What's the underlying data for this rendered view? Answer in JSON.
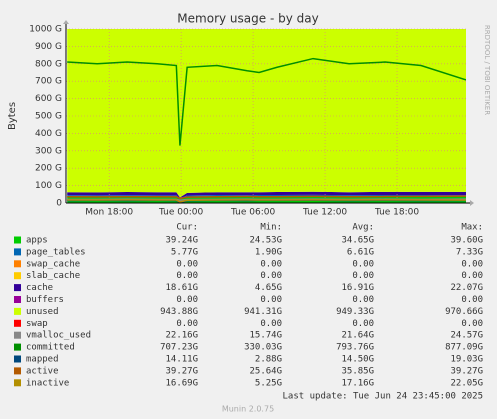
{
  "chart_data": {
    "type": "area",
    "title": "Memory usage - by day",
    "ylabel": "Bytes",
    "side_text": "RRDTOOL / TOBI OETIKER",
    "footer": "Last update: Tue Jun 24 23:45:00 2025",
    "version": "Munin 2.0.75",
    "legend_headers": [
      "Cur:",
      "Min:",
      "Avg:",
      "Max:"
    ],
    "x": [
      14.5,
      17,
      19.5,
      22,
      23.6,
      23.9,
      24.5,
      27,
      29.5,
      30.5,
      32,
      35,
      38,
      41,
      44,
      47.75
    ],
    "xlim": [
      14.4,
      47.75
    ],
    "xticks": [
      {
        "value": 18,
        "label": "Mon 18:00"
      },
      {
        "value": 24,
        "label": "Tue 00:00"
      },
      {
        "value": 30,
        "label": "Tue 06:00"
      },
      {
        "value": 36,
        "label": "Tue 12:00"
      },
      {
        "value": 42,
        "label": "Tue 18:00"
      }
    ],
    "ylim": [
      0,
      1000
    ],
    "yticks": [
      0,
      {
        "value": 100,
        "label": "100 G"
      },
      {
        "value": 200,
        "label": "200 G"
      },
      {
        "value": 300,
        "label": "300 G"
      },
      {
        "value": 400,
        "label": "400 G"
      },
      {
        "value": 500,
        "label": "500 G"
      },
      {
        "value": 600,
        "label": "600 G"
      },
      {
        "value": 700,
        "label": "700 G"
      },
      {
        "value": 800,
        "label": "800 G"
      },
      {
        "value": 900,
        "label": "900 G"
      },
      {
        "value": 1000,
        "label": "1000 G"
      }
    ],
    "grid": true,
    "series": [
      {
        "name": "apps",
        "color": "#00cc00",
        "stack": true,
        "values": [
          39,
          38,
          39,
          38,
          38,
          25,
          37,
          39,
          38,
          39,
          39,
          40,
          39,
          39,
          39,
          39.24
        ],
        "cur": "39.24G",
        "min": "24.53G",
        "avg": "34.65G",
        "max": "39.60G"
      },
      {
        "name": "page_tables",
        "color": "#0066b3",
        "stack": true,
        "values": [
          6,
          6,
          6,
          6,
          6,
          2,
          6,
          7,
          7,
          7,
          7,
          7,
          6,
          7,
          7,
          5.77
        ],
        "cur": "5.77G",
        "min": "1.90G",
        "avg": "6.61G",
        "max": "7.33G"
      },
      {
        "name": "swap_cache",
        "color": "#ff8000",
        "stack": true,
        "values": [
          0,
          0,
          0,
          0,
          0,
          0,
          0,
          0,
          0,
          0,
          0,
          0,
          0,
          0,
          0,
          0
        ],
        "cur": "0.00",
        "min": "0.00",
        "avg": "0.00",
        "max": "0.00"
      },
      {
        "name": "slab_cache",
        "color": "#ffcc00",
        "stack": true,
        "values": [
          0,
          0,
          0,
          0,
          0,
          0,
          0,
          0,
          0,
          0,
          0,
          0,
          0,
          0,
          0,
          0
        ],
        "cur": "0.00",
        "min": "0.00",
        "avg": "0.00",
        "max": "0.00"
      },
      {
        "name": "cache",
        "color": "#330099",
        "stack": true,
        "values": [
          17,
          17,
          18,
          18,
          18,
          5,
          15,
          16,
          17,
          16,
          17,
          18,
          17,
          18,
          18,
          18.61
        ],
        "cur": "18.61G",
        "min": "4.65G",
        "avg": "16.91G",
        "max": "22.07G"
      },
      {
        "name": "buffers",
        "color": "#990099",
        "stack": true,
        "values": [
          0,
          0,
          0,
          0,
          0,
          0,
          0,
          0,
          0,
          0,
          0,
          0,
          0,
          0,
          0,
          0
        ],
        "cur": "0.00",
        "min": "0.00",
        "avg": "0.00",
        "max": "0.00"
      },
      {
        "name": "unused",
        "color": "#ccff00",
        "stack": true,
        "values": [
          940,
          942,
          945,
          948,
          950,
          970,
          955,
          950,
          948,
          952,
          950,
          945,
          948,
          946,
          944,
          943.88
        ],
        "cur": "943.88G",
        "min": "941.31G",
        "avg": "949.33G",
        "max": "970.66G"
      },
      {
        "name": "swap",
        "color": "#ff0000",
        "stack": true,
        "values": [
          0,
          0,
          0,
          0,
          0,
          0,
          0,
          0,
          0,
          0,
          0,
          0,
          0,
          0,
          0,
          0
        ],
        "cur": "0.00",
        "min": "0.00",
        "avg": "0.00",
        "max": "0.00"
      },
      {
        "name": "vmalloc_used",
        "color": "#888888",
        "stack": false,
        "values": [
          21,
          21,
          22,
          21,
          21,
          16,
          20,
          21,
          22,
          21,
          21,
          22,
          21,
          22,
          21,
          22.16
        ],
        "cur": "22.16G",
        "min": "15.74G",
        "avg": "21.64G",
        "max": "24.57G"
      },
      {
        "name": "committed",
        "color": "#008f00",
        "stack": false,
        "values": [
          810,
          800,
          810,
          800,
          790,
          330,
          780,
          790,
          760,
          750,
          780,
          830,
          800,
          810,
          790,
          707.23
        ],
        "cur": "707.23G",
        "min": "330.03G",
        "avg": "793.76G",
        "max": "877.09G"
      },
      {
        "name": "mapped",
        "color": "#00487d",
        "stack": false,
        "values": [
          14,
          15,
          14,
          15,
          14,
          3,
          13,
          15,
          14,
          15,
          15,
          16,
          14,
          15,
          14,
          14.11
        ],
        "cur": "14.11G",
        "min": "2.88G",
        "avg": "14.50G",
        "max": "19.03G"
      },
      {
        "name": "active",
        "color": "#b35a00",
        "stack": false,
        "values": [
          36,
          35,
          36,
          36,
          35,
          26,
          34,
          36,
          37,
          36,
          36,
          38,
          36,
          37,
          38,
          39.27
        ],
        "cur": "39.27G",
        "min": "25.64G",
        "avg": "35.85G",
        "max": "39.27G"
      },
      {
        "name": "inactive",
        "color": "#b38f00",
        "stack": false,
        "values": [
          17,
          17,
          18,
          17,
          17,
          6,
          16,
          17,
          18,
          17,
          17,
          18,
          17,
          18,
          17,
          16.69
        ],
        "cur": "16.69G",
        "min": "5.25G",
        "avg": "17.16G",
        "max": "22.05G"
      }
    ]
  }
}
